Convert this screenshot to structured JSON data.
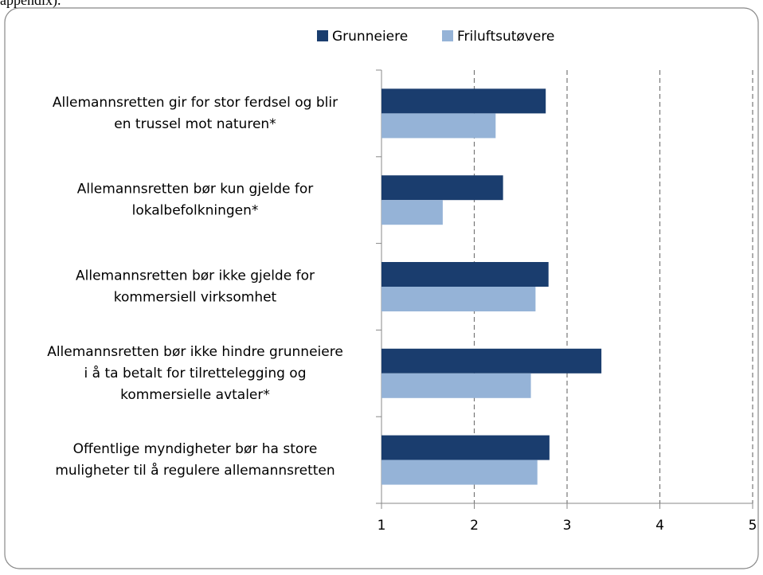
{
  "page_text": "appendix).",
  "chart_data": {
    "type": "barh",
    "categories": [
      [
        "Allemannsretten gir for stor ferdsel og blir",
        "en trussel mot naturen*"
      ],
      [
        "Allemannsretten bør kun gjelde for",
        "lokalbefolkningen*"
      ],
      [
        "Allemannsretten bør ikke gjelde for",
        "kommersiell virksomhet"
      ],
      [
        "Allemannsretten bør ikke hindre grunneiere",
        "i å ta betalt for tilrettelegging og",
        "kommersielle avtaler*"
      ],
      [
        "Offentlige myndigheter bør ha store",
        "muligheter til å regulere allemannsretten"
      ]
    ],
    "series": [
      {
        "name": "Grunneiere",
        "color": "#1a3d6e",
        "values": [
          2.77,
          2.31,
          2.8,
          3.37,
          2.81
        ]
      },
      {
        "name": "Friluftsutøvere",
        "color": "#95b3d7",
        "values": [
          2.23,
          1.66,
          2.66,
          2.61,
          2.68
        ]
      }
    ],
    "xlim": [
      1,
      5
    ],
    "xticks": [
      1,
      2,
      3,
      4,
      5
    ],
    "grid": true,
    "legend": "top"
  }
}
